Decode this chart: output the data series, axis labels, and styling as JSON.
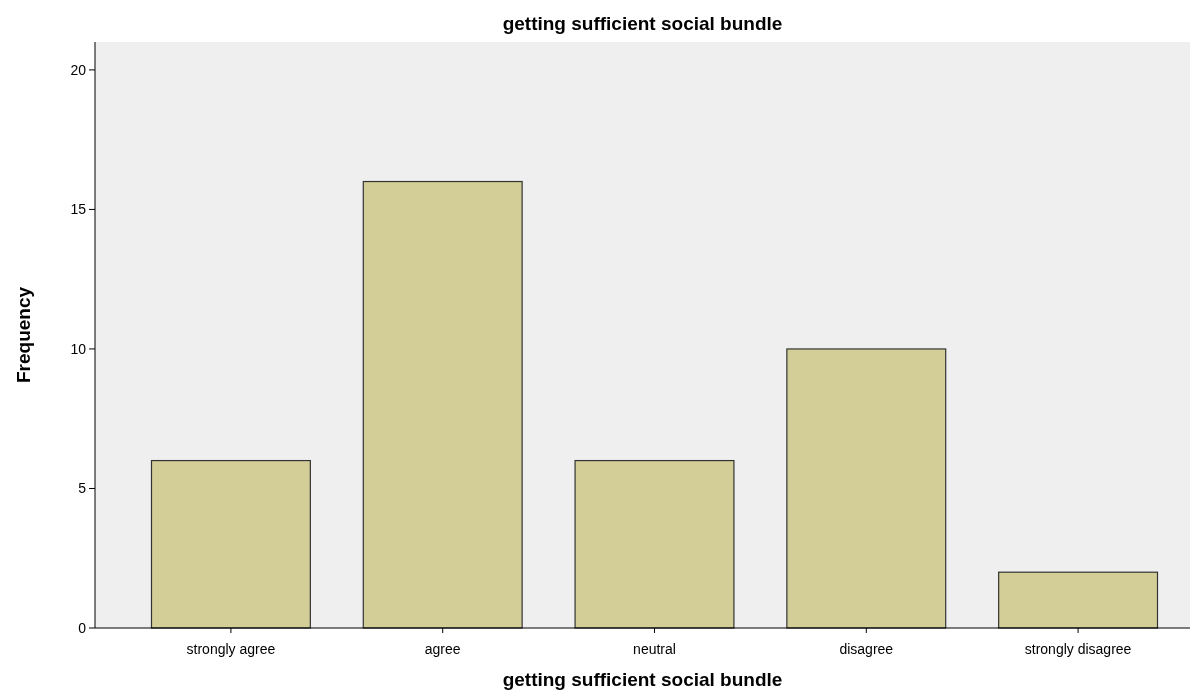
{
  "chart_data": {
    "type": "bar",
    "title": "getting sufficient social bundle",
    "xlabel": "getting sufficient social bundle",
    "ylabel": "Frequency",
    "categories": [
      "strongly agree",
      "agree",
      "neutral",
      "disagree",
      "strongly disagree"
    ],
    "values": [
      6,
      16,
      6,
      10,
      2
    ],
    "color": "#d3ce97",
    "ylim": [
      0,
      21
    ],
    "yticks": [
      0,
      5,
      10,
      15,
      20
    ],
    "grid": false
  }
}
